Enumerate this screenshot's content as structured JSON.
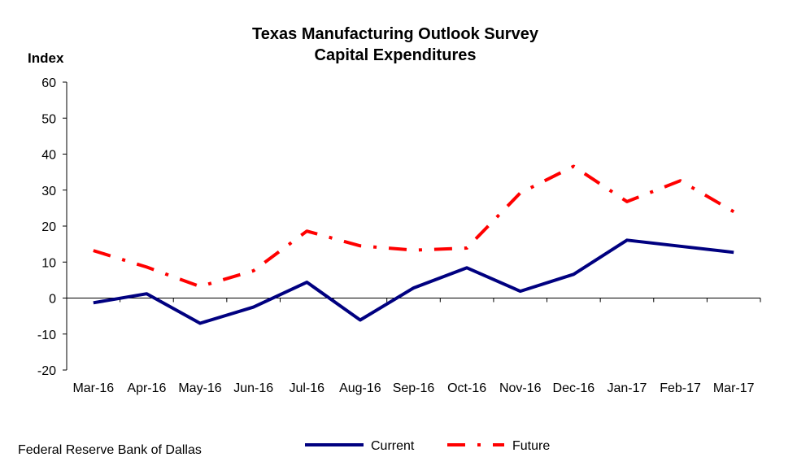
{
  "chart_data": {
    "type": "line",
    "title": "Texas Manufacturing Outlook Survey",
    "subtitle": "Capital Expenditures",
    "ylabel": "Index",
    "xlabel": "",
    "ylim": [
      -20,
      60
    ],
    "yticks": [
      "60",
      "50",
      "40",
      "30",
      "20",
      "10",
      "0",
      "-10",
      "-20"
    ],
    "categories": [
      "Mar-16",
      "Apr-16",
      "May-16",
      "Jun-16",
      "Jul-16",
      "Aug-16",
      "Sep-16",
      "Oct-16",
      "Nov-16",
      "Dec-16",
      "Jan-17",
      "Feb-17",
      "Mar-17"
    ],
    "series": [
      {
        "name": "Current",
        "color": "#000080",
        "style": "solid",
        "values": [
          -1.3,
          1.2,
          -7.0,
          -2.5,
          4.4,
          -6.1,
          2.8,
          8.4,
          1.9,
          6.6,
          16.1,
          14.4,
          12.7
        ]
      },
      {
        "name": "Future",
        "color": "#ff0000",
        "style": "dash-dot",
        "values": [
          13.2,
          8.6,
          3.2,
          7.6,
          18.6,
          14.5,
          13.3,
          13.9,
          29.2,
          36.6,
          26.8,
          32.6,
          24.0
        ]
      }
    ],
    "grid": false,
    "legend_position": "bottom-center"
  },
  "footer": {
    "source": "Federal Reserve Bank of Dallas"
  }
}
